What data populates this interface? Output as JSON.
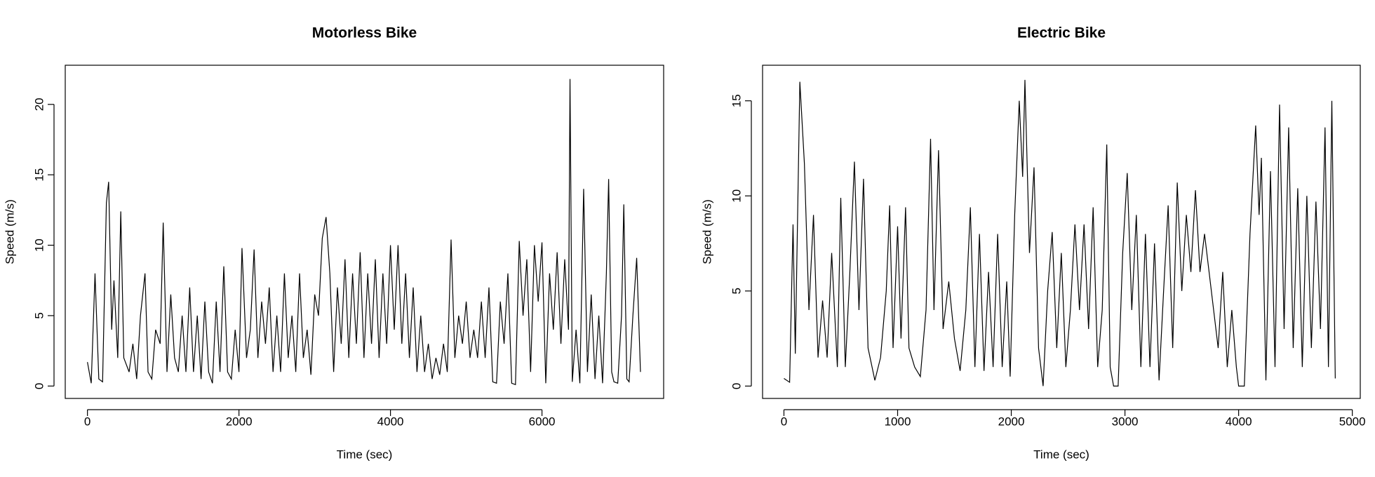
{
  "chart_data": [
    {
      "type": "line",
      "title": "Motorless Bike",
      "x_label": "Time (sec)",
      "y_label": "Speed (m/s)",
      "color": "#000000",
      "x": [
        0,
        50,
        100,
        150,
        200,
        250,
        280,
        320,
        350,
        400,
        440,
        480,
        550,
        600,
        650,
        700,
        760,
        800,
        850,
        900,
        960,
        1000,
        1050,
        1100,
        1150,
        1200,
        1250,
        1300,
        1350,
        1400,
        1450,
        1500,
        1550,
        1600,
        1650,
        1700,
        1750,
        1800,
        1850,
        1900,
        1950,
        2000,
        2040,
        2100,
        2150,
        2200,
        2250,
        2300,
        2350,
        2400,
        2450,
        2500,
        2550,
        2600,
        2650,
        2700,
        2750,
        2800,
        2850,
        2900,
        2950,
        3000,
        3050,
        3100,
        3150,
        3200,
        3250,
        3300,
        3350,
        3400,
        3450,
        3500,
        3550,
        3600,
        3650,
        3700,
        3750,
        3800,
        3850,
        3900,
        3950,
        4000,
        4050,
        4100,
        4150,
        4200,
        4250,
        4300,
        4350,
        4400,
        4450,
        4500,
        4550,
        4600,
        4650,
        4700,
        4750,
        4800,
        4850,
        4900,
        4950,
        5000,
        5050,
        5100,
        5150,
        5200,
        5250,
        5300,
        5350,
        5400,
        5450,
        5500,
        5550,
        5600,
        5650,
        5700,
        5750,
        5800,
        5850,
        5900,
        5950,
        6000,
        6050,
        6100,
        6150,
        6200,
        6250,
        6300,
        6350,
        6370,
        6400,
        6450,
        6500,
        6550,
        6600,
        6650,
        6700,
        6750,
        6800,
        6850,
        6880,
        6920,
        6950,
        7000,
        7050,
        7080,
        7120,
        7150,
        7200,
        7250,
        7300
      ],
      "values": [
        1.7,
        0.2,
        8,
        0.5,
        0.3,
        13,
        14.5,
        4,
        7.5,
        2,
        12.4,
        2,
        1,
        3,
        0.5,
        5,
        8,
        1,
        0.5,
        4,
        3,
        11.6,
        1,
        6.5,
        2,
        1,
        5,
        1,
        7,
        1,
        5,
        0.5,
        6,
        1,
        0.2,
        6,
        1,
        8.5,
        1,
        0.5,
        4,
        1,
        9.8,
        2,
        4,
        9.7,
        2,
        6,
        3,
        7,
        1,
        5,
        1,
        8,
        2,
        5,
        1,
        8,
        2,
        4,
        0.8,
        6.5,
        5,
        10.5,
        12,
        8,
        1,
        7,
        3,
        9,
        2,
        8,
        3,
        9.5,
        2,
        8,
        3,
        9,
        2,
        8,
        3,
        10,
        4,
        10,
        3,
        8,
        2,
        7,
        1,
        5,
        1,
        3,
        0.5,
        2,
        0.8,
        3,
        1,
        10.4,
        2,
        5,
        3,
        6,
        2,
        4,
        2,
        6,
        2,
        7,
        0.3,
        0.2,
        6,
        3,
        8,
        0.2,
        0.1,
        10.3,
        5,
        9,
        1,
        10,
        6,
        10.2,
        0.2,
        8,
        4,
        9.5,
        3,
        9,
        4,
        21.8,
        0.3,
        4,
        0.2,
        14,
        1,
        6.5,
        0.5,
        5,
        0.2,
        8,
        14.7,
        1,
        0.3,
        0.2,
        5,
        12.9,
        0.5,
        0.3,
        5,
        9.1,
        1
      ],
      "xlim": [
        -293,
        7606
      ],
      "ylim": [
        -0.88,
        22.78
      ],
      "xticks": [
        0,
        2000,
        4000,
        6000
      ],
      "yticks": [
        0,
        5,
        10,
        15,
        20
      ]
    },
    {
      "type": "line",
      "title": "Electric Bike",
      "x_label": "Time (sec)",
      "y_label": "Speed (m/s)",
      "color": "#000000",
      "x": [
        0,
        50,
        80,
        100,
        140,
        180,
        220,
        260,
        300,
        340,
        380,
        420,
        470,
        500,
        540,
        580,
        620,
        660,
        700,
        740,
        800,
        850,
        900,
        930,
        960,
        1000,
        1030,
        1070,
        1100,
        1150,
        1200,
        1250,
        1290,
        1320,
        1360,
        1400,
        1450,
        1500,
        1550,
        1600,
        1640,
        1680,
        1720,
        1760,
        1800,
        1840,
        1880,
        1920,
        1960,
        1990,
        2030,
        2070,
        2100,
        2120,
        2160,
        2200,
        2240,
        2280,
        2320,
        2360,
        2400,
        2440,
        2480,
        2520,
        2560,
        2600,
        2640,
        2680,
        2720,
        2760,
        2800,
        2840,
        2870,
        2900,
        2940,
        2980,
        3020,
        3060,
        3100,
        3140,
        3180,
        3220,
        3260,
        3300,
        3340,
        3380,
        3420,
        3460,
        3500,
        3540,
        3580,
        3620,
        3660,
        3700,
        3740,
        3780,
        3820,
        3860,
        3900,
        3940,
        3980,
        4000,
        4050,
        4100,
        4150,
        4180,
        4200,
        4240,
        4280,
        4320,
        4360,
        4400,
        4440,
        4480,
        4520,
        4560,
        4600,
        4640,
        4680,
        4720,
        4760,
        4790,
        4820,
        4850
      ],
      "values": [
        0.4,
        0.2,
        8.5,
        1.7,
        16,
        11.7,
        4,
        9,
        1.5,
        4.5,
        1.5,
        7,
        1,
        9.9,
        1,
        6,
        11.8,
        4,
        10.9,
        2,
        0.3,
        1.5,
        5,
        9.5,
        2,
        8.4,
        2.5,
        9.4,
        2,
        1,
        0.5,
        4,
        13,
        4,
        12.4,
        3,
        5.5,
        2.5,
        0.8,
        4,
        9.4,
        1,
        8,
        0.8,
        6,
        1,
        8,
        1,
        5.5,
        0.5,
        9,
        15,
        11,
        16.1,
        7,
        11.5,
        2,
        0,
        5,
        8.1,
        2,
        7,
        1,
        4,
        8.5,
        4,
        8.5,
        3,
        9.4,
        1,
        4,
        12.7,
        1,
        0,
        0,
        7,
        11.2,
        4,
        9,
        1,
        8,
        1,
        7.5,
        0.3,
        5,
        9.5,
        2,
        10.7,
        5,
        9,
        6,
        10.3,
        6,
        8,
        6,
        4,
        2,
        6,
        1,
        4,
        1,
        0,
        0,
        8,
        13.7,
        9,
        12,
        0.3,
        11.3,
        1,
        14.8,
        3,
        13.6,
        2,
        10.4,
        1,
        10,
        2,
        9.7,
        3,
        13.6,
        1,
        15,
        0.4
      ],
      "xlim": [
        -188,
        5070
      ],
      "ylim": [
        -0.65,
        16.87
      ],
      "xticks": [
        0,
        1000,
        2000,
        3000,
        4000,
        5000
      ],
      "yticks": [
        0,
        5,
        10,
        15
      ]
    }
  ]
}
